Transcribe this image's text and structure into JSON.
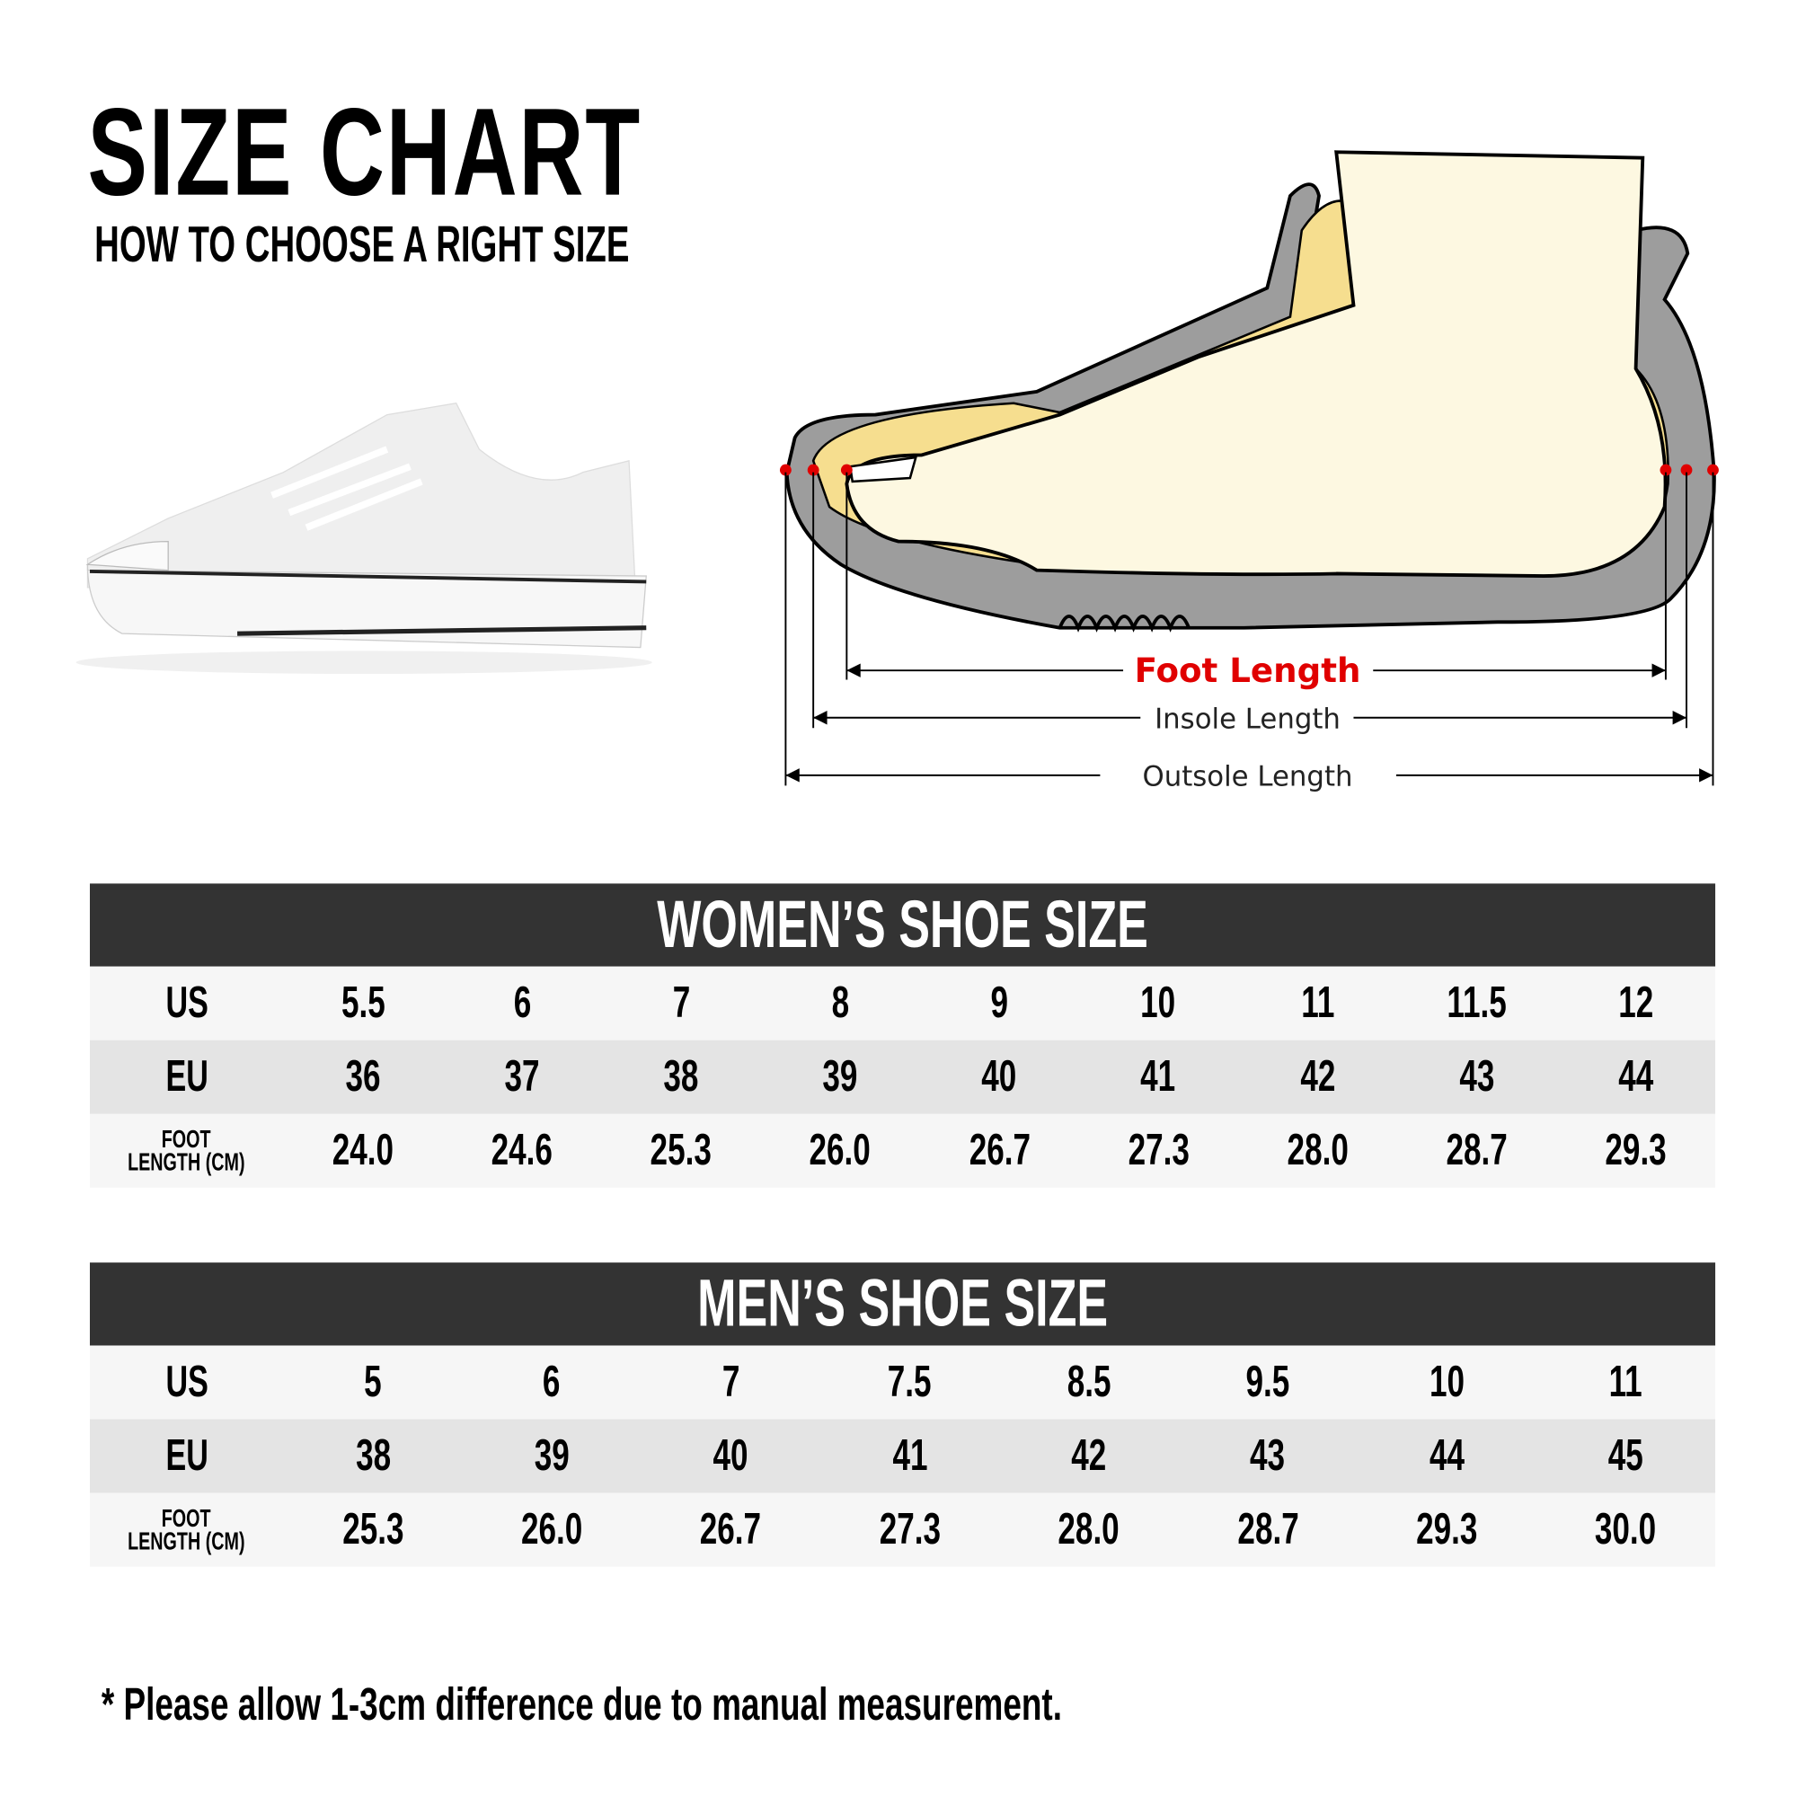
{
  "header": {
    "title": "SIZE CHART",
    "subtitle": "HOW TO CHOOSE A RIGHT SIZE"
  },
  "diagram": {
    "foot_length": "Foot Length",
    "insole_length": "Insole Length",
    "outsole_length": "Outsole Length",
    "accent_color": "#e00000"
  },
  "women": {
    "title": "WOMEN’S SHOE SIZE",
    "rows": [
      {
        "label": "US",
        "values": [
          "5.5",
          "6",
          "7",
          "8",
          "9",
          "10",
          "11",
          "11.5",
          "12"
        ]
      },
      {
        "label": "EU",
        "values": [
          "36",
          "37",
          "38",
          "39",
          "40",
          "41",
          "42",
          "43",
          "44"
        ]
      },
      {
        "label_line1": "FOOT",
        "label_line2": "LENGTH (CM)",
        "values": [
          "24.0",
          "24.6",
          "25.3",
          "26.0",
          "26.7",
          "27.3",
          "28.0",
          "28.7",
          "29.3"
        ]
      }
    ]
  },
  "men": {
    "title": "MEN’S SHOE SIZE",
    "rows": [
      {
        "label": "US",
        "values": [
          "5",
          "6",
          "7",
          "7.5",
          "8.5",
          "9.5",
          "10",
          "11"
        ]
      },
      {
        "label": "EU",
        "values": [
          "38",
          "39",
          "40",
          "41",
          "42",
          "43",
          "44",
          "45"
        ]
      },
      {
        "label_line1": "FOOT",
        "label_line2": "LENGTH (CM)",
        "values": [
          "25.3",
          "26.0",
          "26.7",
          "27.3",
          "28.0",
          "28.7",
          "29.3",
          "30.0"
        ]
      }
    ]
  },
  "note": "* Please allow 1-3cm difference due to manual measurement."
}
